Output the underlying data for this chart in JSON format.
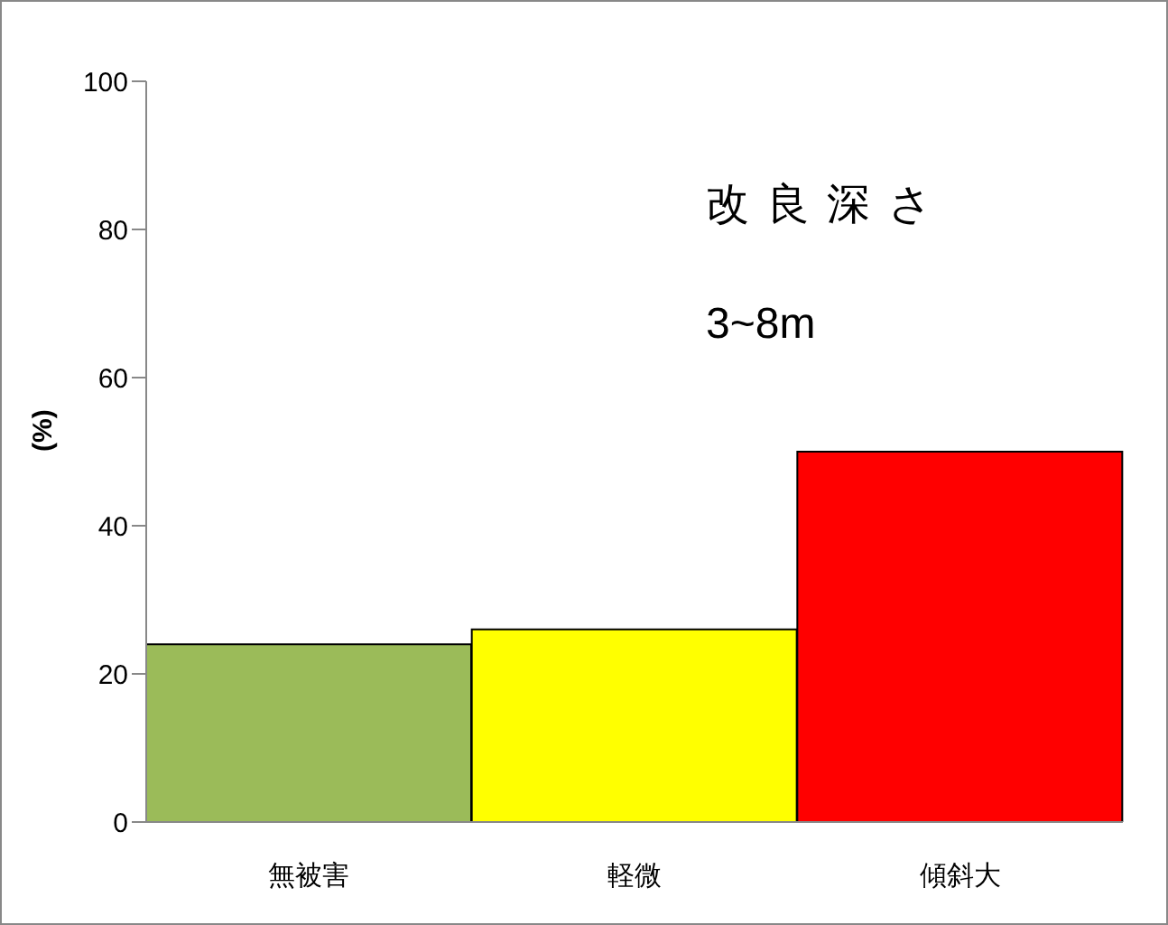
{
  "chart_data": {
    "type": "bar",
    "ylabel": "(%)",
    "categories": [
      "無被害",
      "軽微",
      "傾斜大"
    ],
    "values": [
      24,
      26,
      50
    ],
    "colors": [
      "#9bbb59",
      "#ffff00",
      "#ff0000"
    ],
    "ylim": [
      0,
      100
    ],
    "yticks": [
      0,
      20,
      40,
      60,
      80,
      100
    ],
    "grid": false,
    "annotations": [
      "改良深さ",
      "3~8m"
    ]
  }
}
